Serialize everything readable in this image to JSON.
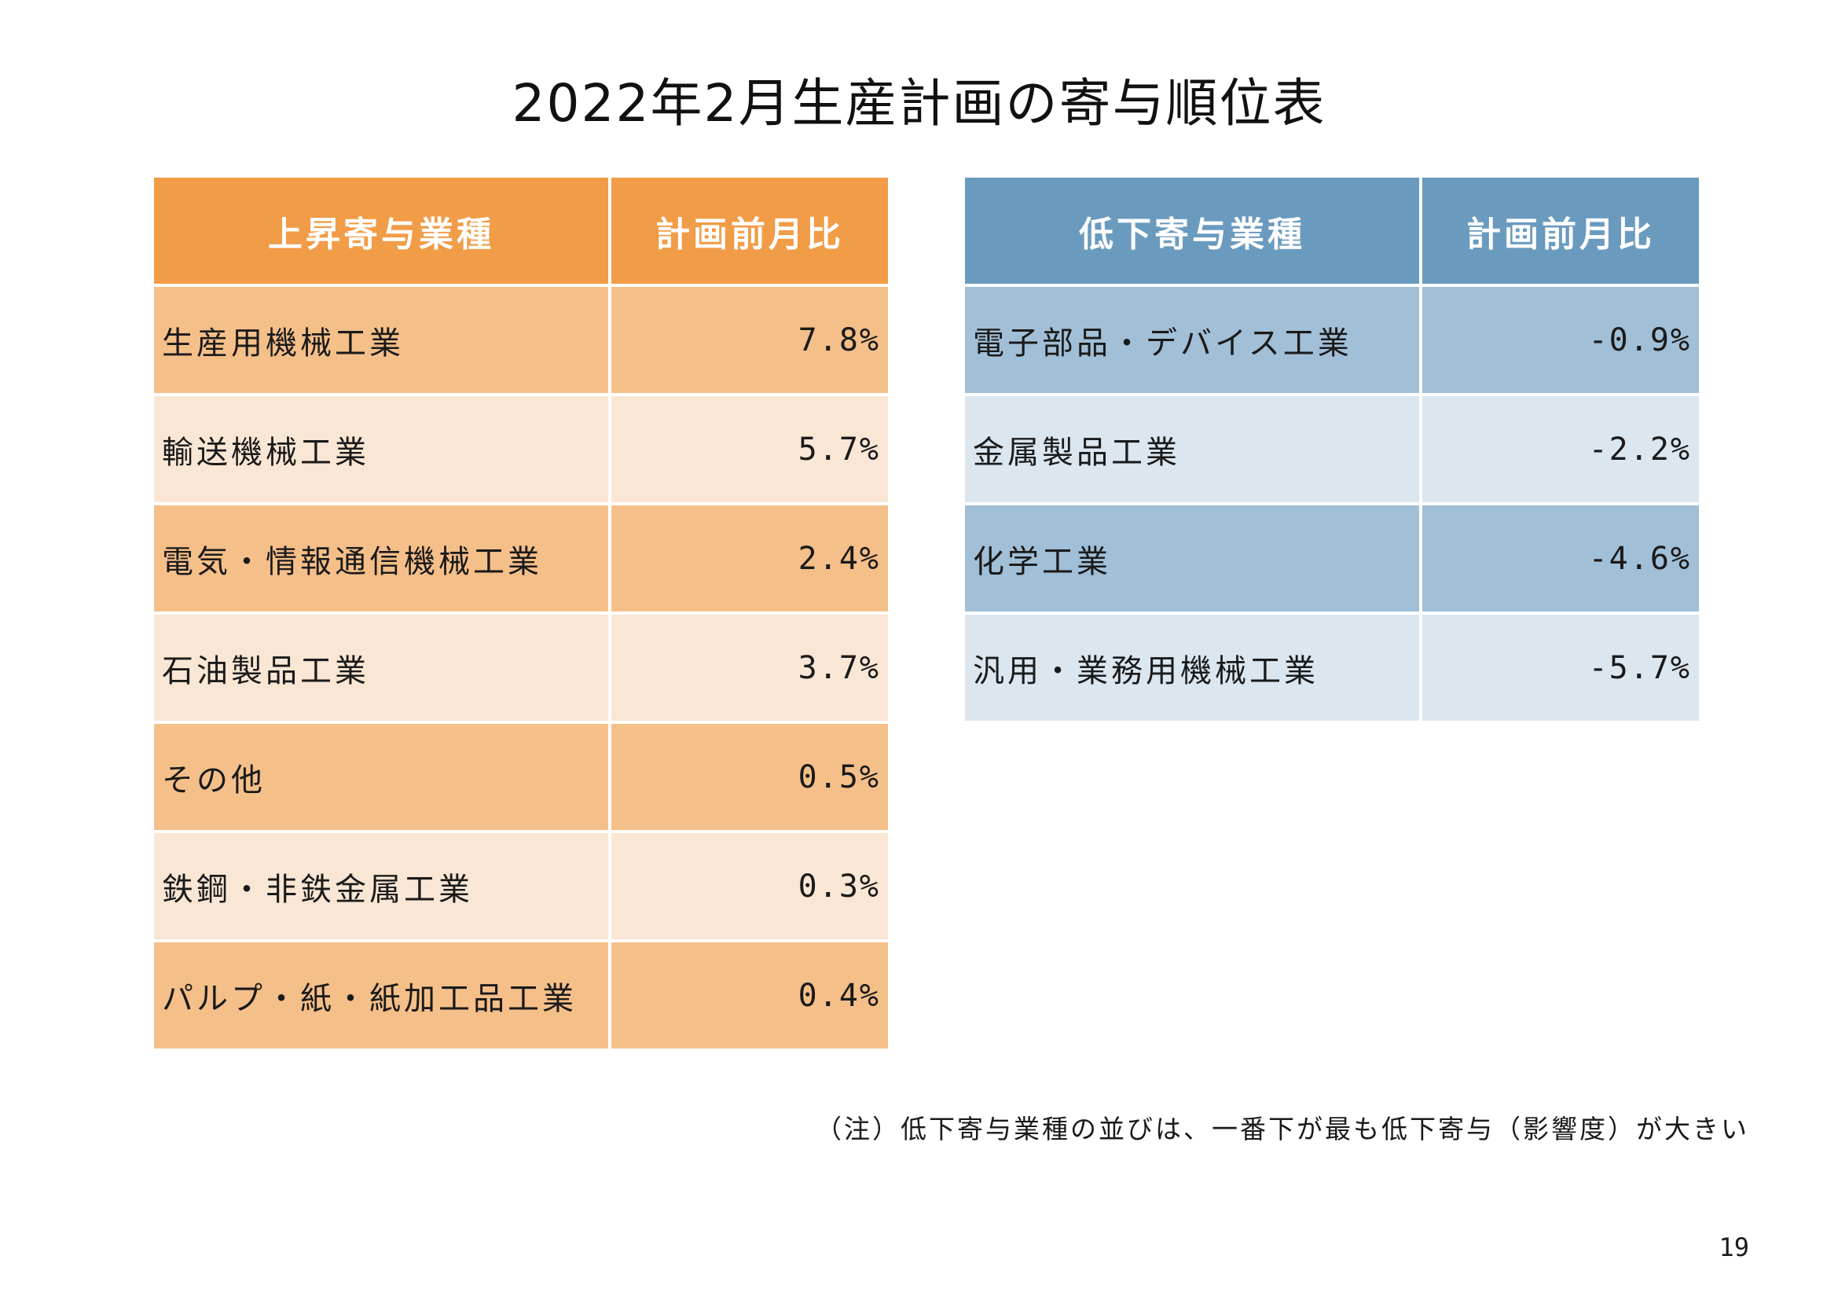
{
  "title": "2022年2月生産計画の寄与順位表",
  "table_up": {
    "header_name": "上昇寄与業種",
    "header_value": "計画前月比",
    "rows": [
      {
        "name": "生産用機械工業",
        "value": "7.8%"
      },
      {
        "name": "輸送機械工業",
        "value": "5.7%"
      },
      {
        "name": "電気・情報通信機械工業",
        "value": "2.4%"
      },
      {
        "name": "石油製品工業",
        "value": "3.7%"
      },
      {
        "name": "その他",
        "value": "0.5%"
      },
      {
        "name": "鉄鋼・非鉄金属工業",
        "value": "0.3%"
      },
      {
        "name": "パルプ・紙・紙加工品工業",
        "value": "0.4%"
      }
    ]
  },
  "table_down": {
    "header_name": "低下寄与業種",
    "header_value": "計画前月比",
    "rows": [
      {
        "name": "電子部品・デバイス工業",
        "value": "-0.9%"
      },
      {
        "name": "金属製品工業",
        "value": "-2.2%"
      },
      {
        "name": "化学工業",
        "value": "-4.6%"
      },
      {
        "name": "汎用・業務用機械工業",
        "value": "-5.7%"
      }
    ]
  },
  "note": "（注）低下寄与業種の並びは、一番下が最も低下寄与（影響度）が大きい",
  "page_number": "19",
  "colors": {
    "up_header": "#f19c47",
    "up_row_dark": "#f5bf89",
    "up_row_light": "#fae6d4",
    "down_header": "#6a9bbf",
    "down_row_dark": "#a1bfd7",
    "down_row_light": "#dbe6ef"
  }
}
